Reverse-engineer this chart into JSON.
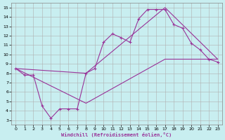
{
  "xlabel": "Windchill (Refroidissement éolien,°C)",
  "background_color": "#c8eef0",
  "grid_color": "#b0b0b0",
  "line_color": "#993399",
  "xlim_min": -0.5,
  "xlim_max": 23.5,
  "ylim_min": 2.5,
  "ylim_max": 15.5,
  "xticks": [
    0,
    1,
    2,
    3,
    4,
    5,
    6,
    7,
    8,
    9,
    10,
    11,
    12,
    13,
    14,
    15,
    16,
    17,
    18,
    19,
    20,
    21,
    22,
    23
  ],
  "yticks": [
    3,
    4,
    5,
    6,
    7,
    8,
    9,
    10,
    11,
    12,
    13,
    14,
    15
  ],
  "line1_x": [
    0,
    1,
    2,
    3,
    4,
    5,
    6,
    7,
    8,
    9,
    10,
    11,
    12,
    13,
    14,
    15,
    16,
    17,
    18,
    19,
    20,
    21,
    22,
    23
  ],
  "line1_y": [
    8.5,
    7.8,
    7.8,
    4.5,
    3.2,
    4.2,
    4.2,
    4.2,
    8.0,
    8.5,
    11.3,
    12.2,
    11.8,
    11.3,
    13.8,
    14.8,
    14.8,
    14.8,
    13.2,
    12.8,
    11.2,
    10.5,
    9.5,
    9.2
  ],
  "line2_x": [
    0,
    8,
    17,
    23
  ],
  "line2_y": [
    8.5,
    8.0,
    15.0,
    9.5
  ],
  "line3_x": [
    0,
    8,
    17,
    23
  ],
  "line3_y": [
    8.5,
    4.8,
    9.5,
    9.5
  ]
}
